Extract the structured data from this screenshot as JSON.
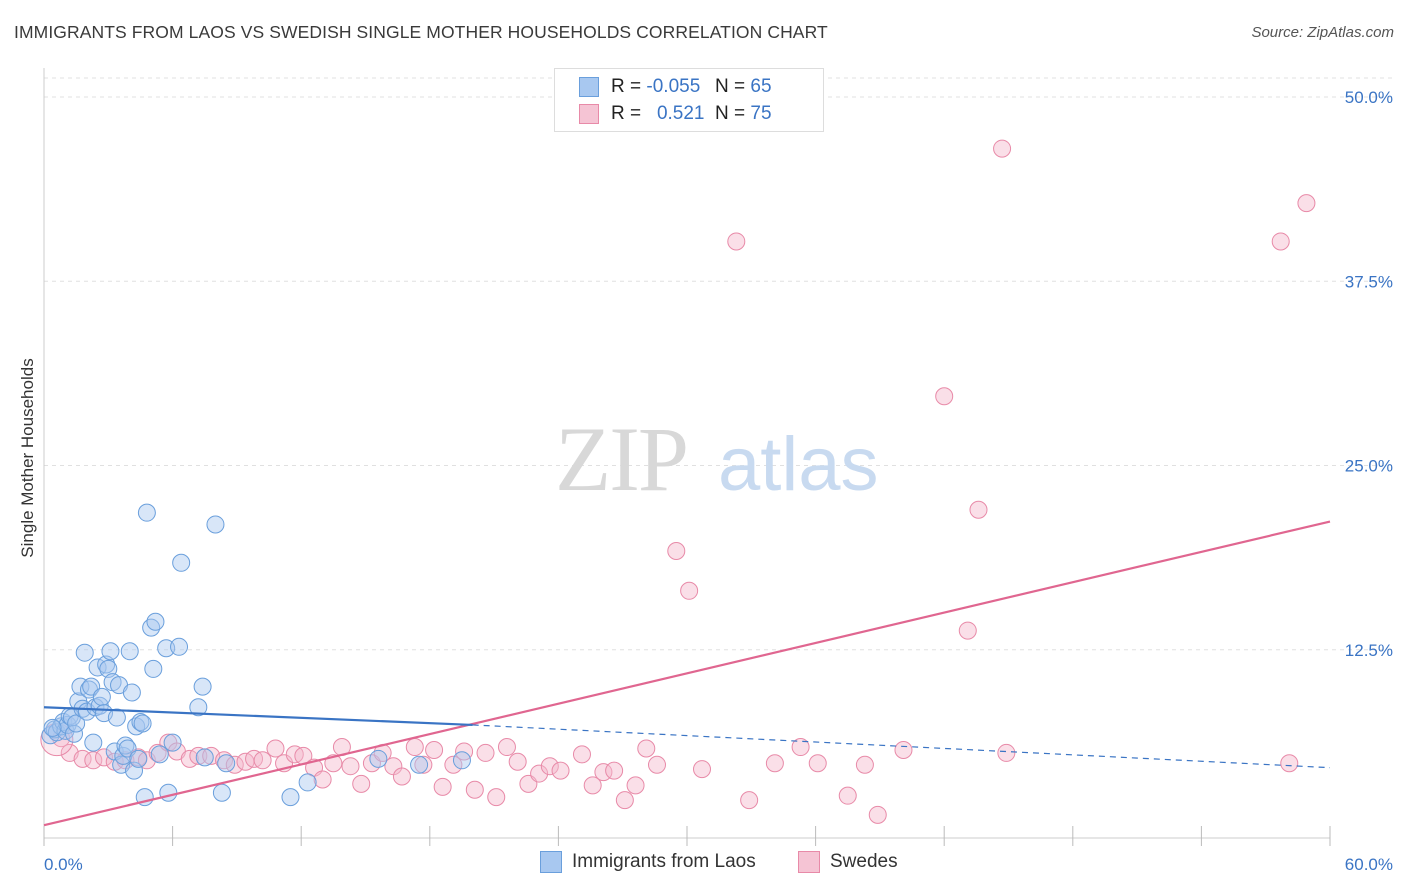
{
  "title": "IMMIGRANTS FROM LAOS VS SWEDISH SINGLE MOTHER HOUSEHOLDS CORRELATION CHART",
  "source": "Source: ZipAtlas.com",
  "watermark": {
    "zip": "ZIP",
    "atlas": "atlas"
  },
  "colors": {
    "blue_fill": "#a8c8f0",
    "blue_stroke": "#6a9fdc",
    "blue_line": "#3a74c4",
    "pink_fill": "#f5b8cc",
    "pink_stroke": "#e88aa8",
    "pink_line": "#e06690",
    "tick_text": "#3a74c4",
    "grid": "#e0e0e0"
  },
  "legend": {
    "rows": [
      {
        "r_label": "R =",
        "r_value": "-0.055",
        "n_label": "N =",
        "n_value": "65",
        "series": "blue"
      },
      {
        "r_label": "R =",
        "r_value": "0.521",
        "n_label": "N =",
        "n_value": "75",
        "series": "pink"
      }
    ]
  },
  "bottom_legend": [
    "Immigrants from Laos",
    "Swedes"
  ],
  "chart_data": {
    "type": "scatter",
    "xlabel": "",
    "ylabel": "Single Mother Households",
    "xlim": [
      0,
      60
    ],
    "ylim": [
      0,
      52
    ],
    "x_tick_labels": [
      "0.0%",
      "60.0%"
    ],
    "y_ticks": [
      12.5,
      25.0,
      37.5,
      50.0
    ],
    "y_tick_labels": [
      "12.5%",
      "25.0%",
      "37.5%",
      "50.0%"
    ],
    "grid": true,
    "series": [
      {
        "name": "Immigrants from Laos",
        "color": "blue",
        "trend": {
          "x1": 0,
          "y1": 8.6,
          "x2": 20,
          "y2": 7.4,
          "dash_to_x": 60,
          "dash_to_y": 4.5
        },
        "points": [
          [
            0.3,
            6.7
          ],
          [
            0.5,
            7.1
          ],
          [
            0.6,
            6.9
          ],
          [
            0.8,
            7.3
          ],
          [
            0.9,
            7.6
          ],
          [
            1.0,
            7.0
          ],
          [
            1.1,
            7.4
          ],
          [
            1.2,
            8.0
          ],
          [
            1.3,
            7.9
          ],
          [
            1.4,
            6.8
          ],
          [
            1.5,
            7.5
          ],
          [
            1.6,
            9.0
          ],
          [
            1.7,
            10.0
          ],
          [
            1.8,
            8.5
          ],
          [
            1.9,
            12.3
          ],
          [
            2.0,
            8.3
          ],
          [
            2.1,
            9.8
          ],
          [
            2.2,
            10.0
          ],
          [
            2.3,
            6.2
          ],
          [
            2.4,
            8.6
          ],
          [
            2.5,
            11.3
          ],
          [
            2.6,
            8.7
          ],
          [
            2.7,
            9.3
          ],
          [
            2.8,
            8.2
          ],
          [
            2.9,
            11.5
          ],
          [
            3.0,
            11.2
          ],
          [
            3.1,
            12.4
          ],
          [
            3.2,
            10.3
          ],
          [
            3.3,
            5.6
          ],
          [
            3.4,
            7.9
          ],
          [
            3.5,
            10.1
          ],
          [
            3.6,
            4.7
          ],
          [
            3.7,
            5.3
          ],
          [
            3.8,
            6.0
          ],
          [
            3.9,
            5.8
          ],
          [
            4.0,
            12.4
          ],
          [
            4.1,
            9.6
          ],
          [
            4.2,
            4.3
          ],
          [
            4.3,
            7.3
          ],
          [
            4.4,
            5.1
          ],
          [
            4.5,
            7.6
          ],
          [
            4.6,
            7.5
          ],
          [
            4.8,
            21.8
          ],
          [
            5.0,
            14.0
          ],
          [
            5.1,
            11.2
          ],
          [
            5.2,
            14.4
          ],
          [
            5.4,
            5.4
          ],
          [
            5.7,
            12.6
          ],
          [
            5.8,
            2.8
          ],
          [
            6.0,
            6.2
          ],
          [
            6.3,
            12.7
          ],
          [
            6.4,
            18.4
          ],
          [
            7.2,
            8.6
          ],
          [
            7.4,
            10.0
          ],
          [
            7.5,
            5.2
          ],
          [
            8.0,
            21.0
          ],
          [
            8.3,
            2.8
          ],
          [
            8.5,
            4.8
          ],
          [
            11.5,
            2.5
          ],
          [
            12.3,
            3.5
          ],
          [
            15.6,
            5.1
          ],
          [
            17.5,
            4.7
          ],
          [
            19.5,
            5.0
          ],
          [
            4.7,
            2.5
          ],
          [
            0.4,
            7.2
          ]
        ]
      },
      {
        "name": "Swedes",
        "color": "pink",
        "trend": {
          "x1": 0,
          "y1": 0.6,
          "x2": 60,
          "y2": 21.2
        },
        "points": [
          [
            0.8,
            6.5
          ],
          [
            1.2,
            5.5
          ],
          [
            1.8,
            5.1
          ],
          [
            2.3,
            5.0
          ],
          [
            2.8,
            5.2
          ],
          [
            3.3,
            4.9
          ],
          [
            3.8,
            5.0
          ],
          [
            4.4,
            5.2
          ],
          [
            4.8,
            5.0
          ],
          [
            5.3,
            5.5
          ],
          [
            5.8,
            6.2
          ],
          [
            6.2,
            5.6
          ],
          [
            6.8,
            5.1
          ],
          [
            7.2,
            5.3
          ],
          [
            7.8,
            5.3
          ],
          [
            8.4,
            5.0
          ],
          [
            8.9,
            4.7
          ],
          [
            9.4,
            4.9
          ],
          [
            9.8,
            5.1
          ],
          [
            10.2,
            5.0
          ],
          [
            10.8,
            5.8
          ],
          [
            11.2,
            4.8
          ],
          [
            11.7,
            5.4
          ],
          [
            12.1,
            5.3
          ],
          [
            12.6,
            4.5
          ],
          [
            13.0,
            3.7
          ],
          [
            13.5,
            4.8
          ],
          [
            13.9,
            5.9
          ],
          [
            14.3,
            4.6
          ],
          [
            14.8,
            3.4
          ],
          [
            15.3,
            4.8
          ],
          [
            15.8,
            5.5
          ],
          [
            16.3,
            4.6
          ],
          [
            16.7,
            3.9
          ],
          [
            17.3,
            5.9
          ],
          [
            17.7,
            4.7
          ],
          [
            18.2,
            5.7
          ],
          [
            18.6,
            3.2
          ],
          [
            19.1,
            4.7
          ],
          [
            19.6,
            5.6
          ],
          [
            20.1,
            3.0
          ],
          [
            20.6,
            5.5
          ],
          [
            21.1,
            2.5
          ],
          [
            21.6,
            5.9
          ],
          [
            22.1,
            4.9
          ],
          [
            22.6,
            3.4
          ],
          [
            23.1,
            4.1
          ],
          [
            23.6,
            4.6
          ],
          [
            24.1,
            4.3
          ],
          [
            25.1,
            5.4
          ],
          [
            25.6,
            3.3
          ],
          [
            26.1,
            4.2
          ],
          [
            26.6,
            4.3
          ],
          [
            27.1,
            2.3
          ],
          [
            27.6,
            3.3
          ],
          [
            28.1,
            5.8
          ],
          [
            28.6,
            4.7
          ],
          [
            29.5,
            19.2
          ],
          [
            30.1,
            16.5
          ],
          [
            30.7,
            4.4
          ],
          [
            32.3,
            40.2
          ],
          [
            32.9,
            2.3
          ],
          [
            34.1,
            4.8
          ],
          [
            35.3,
            5.9
          ],
          [
            36.1,
            4.8
          ],
          [
            38.3,
            4.7
          ],
          [
            37.5,
            2.6
          ],
          [
            38.9,
            1.3
          ],
          [
            40.1,
            5.7
          ],
          [
            42.0,
            29.7
          ],
          [
            43.1,
            13.8
          ],
          [
            43.6,
            22.0
          ],
          [
            44.9,
            5.5
          ],
          [
            44.7,
            46.5
          ],
          [
            57.7,
            40.2
          ]
        ]
      }
    ],
    "extra_points": [
      {
        "series": "Swedes",
        "x": 58.1,
        "y": 4.8
      },
      {
        "series": "Swedes",
        "x": 58.9,
        "y": 42.8
      }
    ]
  }
}
